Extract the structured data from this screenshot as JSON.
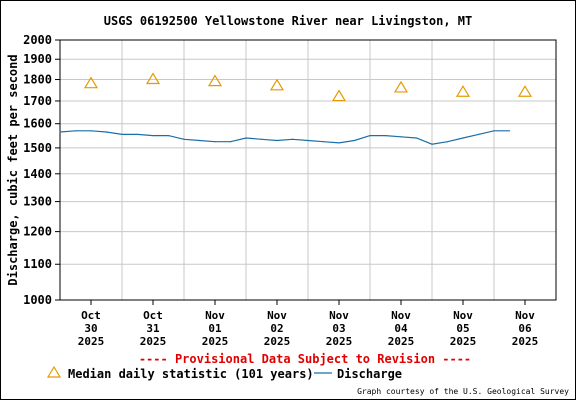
{
  "chart_data": {
    "type": "line",
    "title": "USGS 06192500 Yellowstone River near Livingston, MT",
    "ylabel": "Discharge, cubic feet per second",
    "xlabel": "",
    "ylim": [
      1000,
      2000
    ],
    "y_ticks": [
      "2000",
      "1900",
      "1800",
      "1700",
      "1600",
      "1500",
      "1400",
      "1300",
      "1200",
      "1100",
      "1000"
    ],
    "y_scale": "log",
    "grid": true,
    "x_ticks": [
      {
        "month": "Oct",
        "day": "30",
        "year": "2025"
      },
      {
        "month": "Oct",
        "day": "31",
        "year": "2025"
      },
      {
        "month": "Nov",
        "day": "01",
        "year": "2025"
      },
      {
        "month": "Nov",
        "day": "02",
        "year": "2025"
      },
      {
        "month": "Nov",
        "day": "03",
        "year": "2025"
      },
      {
        "month": "Nov",
        "day": "04",
        "year": "2025"
      },
      {
        "month": "Nov",
        "day": "05",
        "year": "2025"
      },
      {
        "month": "Nov",
        "day": "06",
        "year": "2025"
      }
    ],
    "series": [
      {
        "name": "Median daily statistic (101 years)",
        "marker": "triangle",
        "color": "#e69900",
        "dates": [
          "2025-10-30",
          "2025-10-31",
          "2025-11-01",
          "2025-11-02",
          "2025-11-03",
          "2025-11-04",
          "2025-11-05",
          "2025-11-06"
        ],
        "values": [
          1780,
          1800,
          1790,
          1770,
          1720,
          1760,
          1740,
          1740
        ]
      },
      {
        "name": "Discharge",
        "marker": "line",
        "color": "#1a6fa8",
        "dates": [
          "2025-10-30 00:00",
          "2025-10-30 06:00",
          "2025-10-30 12:00",
          "2025-10-30 18:00",
          "2025-10-31 00:00",
          "2025-10-31 06:00",
          "2025-10-31 12:00",
          "2025-10-31 18:00",
          "2025-11-01 00:00",
          "2025-11-01 06:00",
          "2025-11-01 12:00",
          "2025-11-01 18:00",
          "2025-11-02 00:00",
          "2025-11-02 06:00",
          "2025-11-02 12:00",
          "2025-11-02 18:00",
          "2025-11-03 00:00",
          "2025-11-03 06:00",
          "2025-11-03 12:00",
          "2025-11-03 18:00",
          "2025-11-04 00:00",
          "2025-11-04 06:00",
          "2025-11-04 12:00",
          "2025-11-04 18:00",
          "2025-11-05 00:00",
          "2025-11-05 06:00",
          "2025-11-05 12:00",
          "2025-11-05 18:00",
          "2025-11-06 00:00",
          "2025-11-06 06:00"
        ],
        "values": [
          1565,
          1570,
          1570,
          1565,
          1555,
          1555,
          1550,
          1550,
          1535,
          1530,
          1525,
          1525,
          1540,
          1535,
          1530,
          1535,
          1530,
          1525,
          1520,
          1530,
          1550,
          1550,
          1545,
          1540,
          1515,
          1525,
          1540,
          1555,
          1570,
          1570
        ]
      }
    ],
    "provisional_note": "---- Provisional Data Subject to Revision ----",
    "legend": {
      "placement": "bottom",
      "median_label": "Median daily statistic (101 years)",
      "discharge_label": "Discharge"
    },
    "credit": "Graph courtesy of the U.S. Geological Survey"
  }
}
